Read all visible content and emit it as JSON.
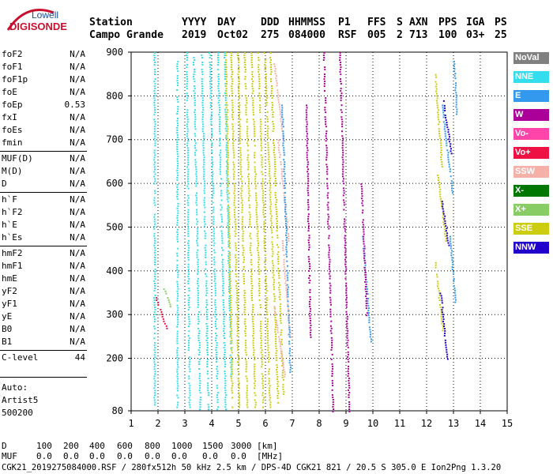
{
  "logo": {
    "top": "Lowell",
    "bottom": "DIGISONDE"
  },
  "header": {
    "cols": [
      {
        "label": "Station",
        "value": "Campo Grande"
      },
      {
        "label": "YYYY",
        "value": "2019"
      },
      {
        "label": "DAY",
        "value": "Oct02"
      },
      {
        "label": "DDD",
        "value": "275"
      },
      {
        "label": "HHMMSS",
        "value": "084000"
      },
      {
        "label": "P1",
        "value": "RSF"
      },
      {
        "label": "FFS",
        "value": "005"
      },
      {
        "label": "S",
        "value": "2"
      },
      {
        "label": "AXN",
        "value": "713"
      },
      {
        "label": "PPS",
        "value": "100"
      },
      {
        "label": "IGA",
        "value": "03+"
      },
      {
        "label": "PS",
        "value": "25"
      }
    ]
  },
  "params": [
    {
      "name": "foF2",
      "value": "N/A"
    },
    {
      "name": "foF1",
      "value": "N/A"
    },
    {
      "name": "foF1p",
      "value": "N/A"
    },
    {
      "name": "foE",
      "value": "N/A"
    },
    {
      "name": "foEp",
      "value": "0.53"
    },
    {
      "name": "fxI",
      "value": "N/A"
    },
    {
      "name": "foEs",
      "value": "N/A"
    },
    {
      "name": "fmin",
      "value": "N/A"
    },
    {
      "name": "MUF(D)",
      "value": "N/A"
    },
    {
      "name": "M(D)",
      "value": "N/A"
    },
    {
      "name": "D",
      "value": "N/A"
    },
    {
      "name": "h`F",
      "value": "N/A"
    },
    {
      "name": "h`F2",
      "value": "N/A"
    },
    {
      "name": "h`E",
      "value": "N/A"
    },
    {
      "name": "h`Es",
      "value": "N/A"
    },
    {
      "name": "hmF2",
      "value": "N/A"
    },
    {
      "name": "hmF1",
      "value": "N/A"
    },
    {
      "name": "hmE",
      "value": "N/A"
    },
    {
      "name": "yF2",
      "value": "N/A"
    },
    {
      "name": "yF1",
      "value": "N/A"
    },
    {
      "name": "yE",
      "value": "N/A"
    },
    {
      "name": "B0",
      "value": "N/A"
    },
    {
      "name": "B1",
      "value": "N/A"
    },
    {
      "name": "C-level",
      "value": "44"
    }
  ],
  "autoscaler": {
    "line1": "Auto:",
    "line2": "Artist5",
    "line3": "500200"
  },
  "legend": [
    {
      "label": "NoVal",
      "color": "#808080"
    },
    {
      "label": "NNE",
      "color": "#33ddee"
    },
    {
      "label": "E",
      "color": "#3399ee"
    },
    {
      "label": "W",
      "color": "#aa0099"
    },
    {
      "label": "Vo-",
      "color": "#ff44aa"
    },
    {
      "label": "Vo+",
      "color": "#ee1144"
    },
    {
      "label": "SSW",
      "color": "#f5b0a8"
    },
    {
      "label": "X-",
      "color": "#007700"
    },
    {
      "label": "X+",
      "color": "#88cc66"
    },
    {
      "label": "SSE",
      "color": "#cccc11"
    },
    {
      "label": "NNW",
      "color": "#2200cc"
    }
  ],
  "footer": {
    "d_label": "D",
    "d_values": [
      "100",
      "200",
      "400",
      "600",
      "800",
      "1000",
      "1500",
      "3000",
      "[km]"
    ],
    "muf_label": "MUF",
    "muf_values": [
      "0.0",
      "0.0",
      "0.0",
      "0.0",
      "0.0",
      "0.0",
      "0.0",
      "0.0",
      "[MHz]"
    ],
    "info": "CGK21_2019275084000.RSF / 280fx512h 50 kHz 2.5 km / DPS-4D CGK21 821 / 20.5 S 305.0 E Ion2Png 1.3.20"
  },
  "chart_data": {
    "type": "scatter",
    "xlabel": "",
    "ylabel": "",
    "xlim": [
      1,
      15
    ],
    "ylim": [
      80,
      900
    ],
    "x_ticks": [
      "1",
      "2",
      "3",
      "4",
      "5",
      "6",
      "7",
      "8",
      "9",
      "10",
      "11",
      "12",
      "13",
      "14",
      "15"
    ],
    "y_ticks": [
      "80",
      "200",
      "300",
      "400",
      "500",
      "600",
      "700",
      "800",
      "900"
    ],
    "y_tick_values": [
      80,
      200,
      300,
      400,
      500,
      600,
      700,
      800,
      900
    ],
    "grid": true,
    "series": [
      {
        "name": "NNE",
        "color": "#33ddee",
        "tracks": [
          [
            1.85,
            900,
            1.85,
            90
          ],
          [
            2.7,
            880,
            2.7,
            90
          ],
          [
            3.05,
            900,
            3.15,
            90
          ],
          [
            3.3,
            900,
            3.55,
            85
          ],
          [
            3.6,
            900,
            3.85,
            85
          ],
          [
            3.9,
            900,
            4.2,
            85
          ],
          [
            4.2,
            900,
            4.5,
            85
          ],
          [
            4.45,
            900,
            4.7,
            160
          ]
        ]
      },
      {
        "name": "SSE",
        "color": "#cccc11",
        "tracks": [
          [
            4.5,
            900,
            4.75,
            90
          ],
          [
            4.7,
            900,
            5.0,
            90
          ],
          [
            4.95,
            900,
            5.3,
            90
          ],
          [
            5.2,
            900,
            5.6,
            90
          ],
          [
            5.45,
            900,
            5.9,
            90
          ],
          [
            5.7,
            900,
            6.15,
            90
          ],
          [
            5.95,
            900,
            6.45,
            100
          ],
          [
            6.15,
            900,
            6.65,
            120
          ],
          [
            12.3,
            850,
            12.55,
            640
          ],
          [
            12.4,
            620,
            12.7,
            470
          ],
          [
            12.3,
            420,
            12.6,
            260
          ]
        ]
      },
      {
        "name": "SSW",
        "color": "#f5b0a8",
        "tracks": [
          [
            6.3,
            880,
            6.65,
            700
          ],
          [
            6.45,
            700,
            6.85,
            470
          ],
          [
            6.6,
            470,
            6.9,
            250
          ],
          [
            6.3,
            320,
            6.7,
            160
          ]
        ]
      },
      {
        "name": "E",
        "color": "#3399ee",
        "tracks": [
          [
            6.6,
            780,
            6.9,
            170
          ],
          [
            9.6,
            480,
            9.9,
            240
          ],
          [
            12.55,
            780,
            12.95,
            580
          ],
          [
            12.85,
            480,
            13.05,
            330
          ],
          [
            13.0,
            880,
            13.1,
            760
          ]
        ]
      },
      {
        "name": "W",
        "color": "#aa0099",
        "tracks": [
          [
            8.15,
            900,
            8.5,
            80
          ],
          [
            8.75,
            900,
            9.1,
            80
          ],
          [
            7.5,
            780,
            7.65,
            250
          ],
          [
            9.55,
            600,
            9.75,
            300
          ]
        ]
      },
      {
        "name": "NNW",
        "color": "#2200cc",
        "tracks": [
          [
            12.6,
            790,
            12.9,
            670
          ],
          [
            12.55,
            560,
            12.8,
            460
          ],
          [
            12.5,
            350,
            12.75,
            200
          ]
        ]
      },
      {
        "name": "Vo+",
        "color": "#ee1144",
        "tracks": [
          [
            1.9,
            340,
            2.3,
            270
          ]
        ]
      },
      {
        "name": "X+",
        "color": "#88cc66",
        "tracks": [
          [
            2.2,
            360,
            2.45,
            320
          ]
        ]
      }
    ]
  }
}
